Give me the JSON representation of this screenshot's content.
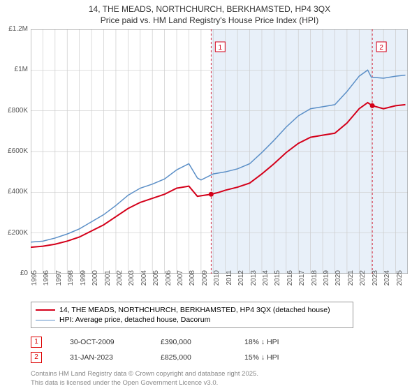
{
  "title_line1": "14, THE MEADS, NORTHCHURCH, BERKHAMSTED, HP4 3QX",
  "title_line2": "Price paid vs. HM Land Registry's House Price Index (HPI)",
  "chart": {
    "type": "line",
    "background_color": "#ffffff",
    "grid_color": "#cccccc",
    "shaded_color": "#e8f0f9",
    "ylim": [
      0,
      1200000
    ],
    "ytick_step": 200000,
    "yticks": [
      "£0",
      "£200K",
      "£400K",
      "£600K",
      "£800K",
      "£1M",
      "£1.2M"
    ],
    "xlim": [
      1995,
      2026
    ],
    "xticks": [
      1995,
      1996,
      1997,
      1998,
      1999,
      2000,
      2001,
      2002,
      2003,
      2004,
      2005,
      2006,
      2007,
      2008,
      2009,
      2010,
      2011,
      2012,
      2013,
      2014,
      2015,
      2016,
      2017,
      2018,
      2019,
      2020,
      2021,
      2022,
      2023,
      2024,
      2025
    ],
    "series": [
      {
        "name": "property",
        "color": "#d4001a",
        "width": 2,
        "data": [
          [
            1995,
            130000
          ],
          [
            1996,
            135000
          ],
          [
            1997,
            145000
          ],
          [
            1998,
            160000
          ],
          [
            1999,
            180000
          ],
          [
            2000,
            210000
          ],
          [
            2001,
            240000
          ],
          [
            2002,
            280000
          ],
          [
            2003,
            320000
          ],
          [
            2004,
            350000
          ],
          [
            2005,
            370000
          ],
          [
            2006,
            390000
          ],
          [
            2007,
            420000
          ],
          [
            2008,
            430000
          ],
          [
            2008.7,
            380000
          ],
          [
            2009.83,
            390000
          ],
          [
            2010.5,
            400000
          ],
          [
            2011,
            410000
          ],
          [
            2012,
            425000
          ],
          [
            2013,
            445000
          ],
          [
            2014,
            490000
          ],
          [
            2015,
            540000
          ],
          [
            2016,
            595000
          ],
          [
            2017,
            640000
          ],
          [
            2018,
            670000
          ],
          [
            2019,
            680000
          ],
          [
            2020,
            690000
          ],
          [
            2021,
            740000
          ],
          [
            2022,
            810000
          ],
          [
            2022.7,
            840000
          ],
          [
            2023.08,
            825000
          ],
          [
            2024,
            810000
          ],
          [
            2025,
            825000
          ],
          [
            2025.8,
            830000
          ]
        ]
      },
      {
        "name": "hpi",
        "color": "#5b8fc7",
        "width": 1.5,
        "data": [
          [
            1995,
            155000
          ],
          [
            1996,
            160000
          ],
          [
            1997,
            175000
          ],
          [
            1998,
            195000
          ],
          [
            1999,
            220000
          ],
          [
            2000,
            255000
          ],
          [
            2001,
            290000
          ],
          [
            2002,
            335000
          ],
          [
            2003,
            385000
          ],
          [
            2004,
            420000
          ],
          [
            2005,
            440000
          ],
          [
            2006,
            465000
          ],
          [
            2007,
            510000
          ],
          [
            2008,
            540000
          ],
          [
            2008.7,
            470000
          ],
          [
            2009,
            460000
          ],
          [
            2010,
            490000
          ],
          [
            2011,
            500000
          ],
          [
            2012,
            515000
          ],
          [
            2013,
            540000
          ],
          [
            2014,
            595000
          ],
          [
            2015,
            655000
          ],
          [
            2016,
            720000
          ],
          [
            2017,
            775000
          ],
          [
            2018,
            810000
          ],
          [
            2019,
            820000
          ],
          [
            2020,
            830000
          ],
          [
            2021,
            895000
          ],
          [
            2022,
            970000
          ],
          [
            2022.7,
            1000000
          ],
          [
            2023,
            965000
          ],
          [
            2024,
            960000
          ],
          [
            2025,
            970000
          ],
          [
            2025.8,
            975000
          ]
        ]
      }
    ],
    "markers": [
      {
        "label": "1",
        "x": 2009.83,
        "color": "#d4001a"
      },
      {
        "label": "2",
        "x": 2023.08,
        "color": "#d4001a"
      }
    ],
    "property_points": [
      {
        "x": 2009.83,
        "y": 390000
      },
      {
        "x": 2023.08,
        "y": 825000
      }
    ]
  },
  "legend": {
    "items": [
      {
        "color": "#d4001a",
        "width": 2,
        "label": "14, THE MEADS, NORTHCHURCH, BERKHAMSTED, HP4 3QX (detached house)"
      },
      {
        "color": "#5b8fc7",
        "width": 1.5,
        "label": "HPI: Average price, detached house, Dacorum"
      }
    ]
  },
  "transactions": [
    {
      "badge": "1",
      "date": "30-OCT-2009",
      "price": "£390,000",
      "diff": "18% ↓ HPI"
    },
    {
      "badge": "2",
      "date": "31-JAN-2023",
      "price": "£825,000",
      "diff": "15% ↓ HPI"
    }
  ],
  "footer_line1": "Contains HM Land Registry data © Crown copyright and database right 2025.",
  "footer_line2": "This data is licensed under the Open Government Licence v3.0."
}
